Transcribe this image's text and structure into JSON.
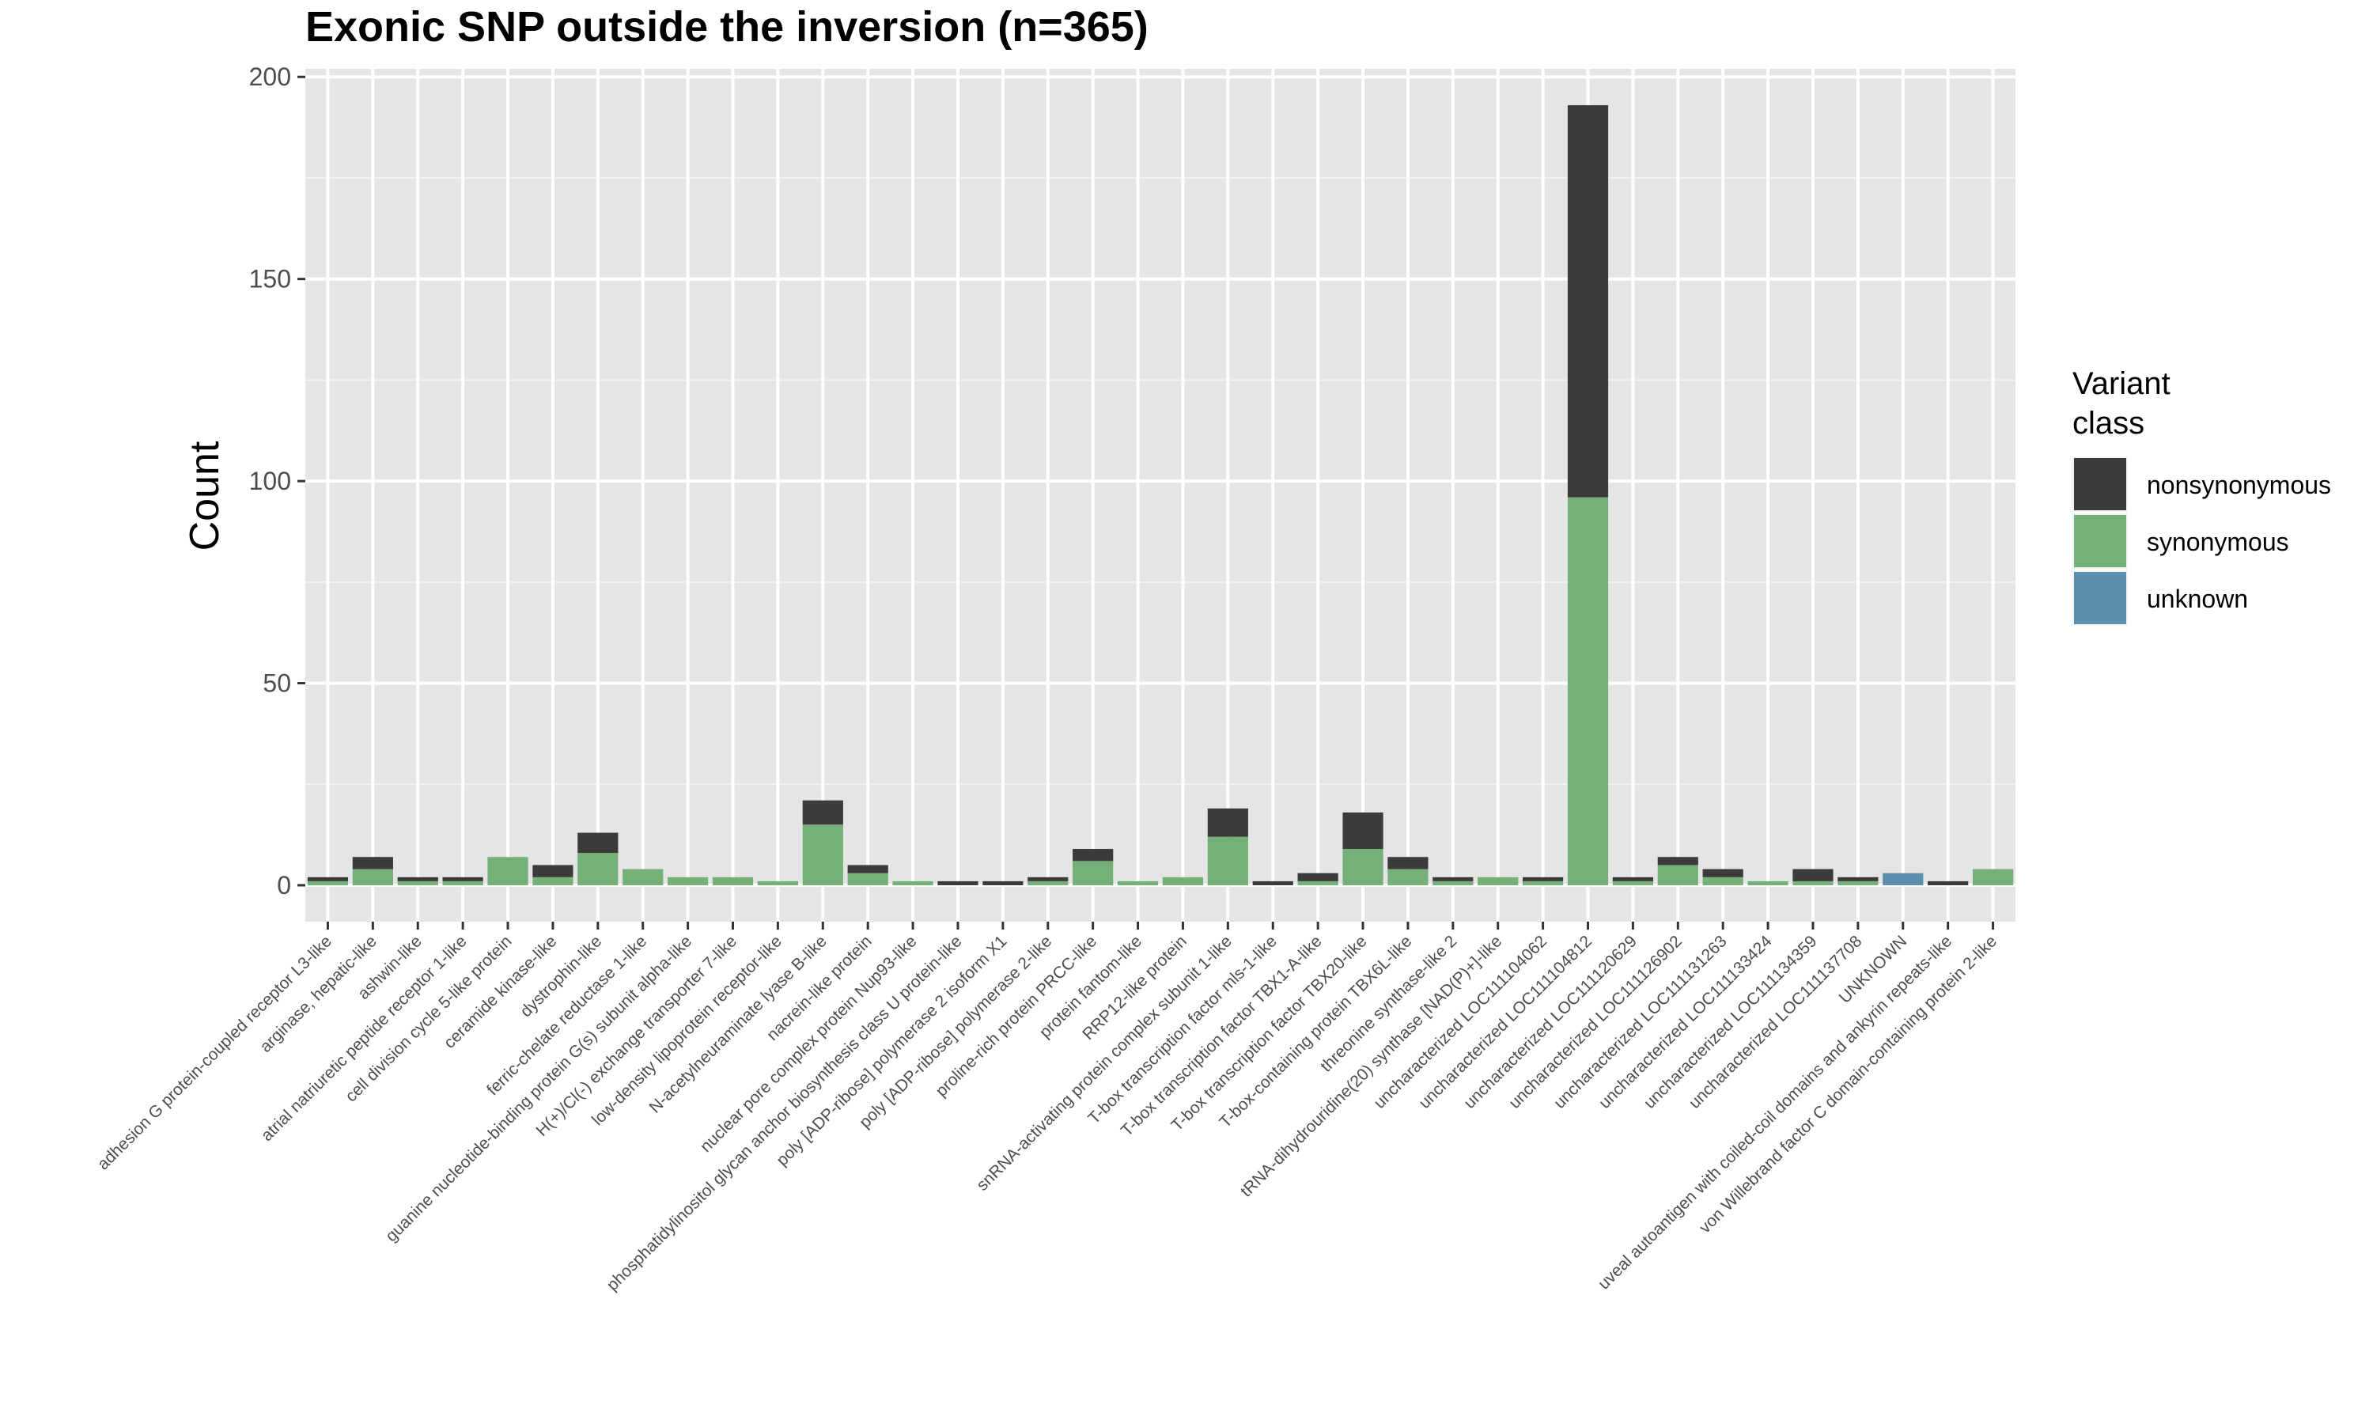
{
  "chart_data": {
    "type": "bar",
    "stacked": true,
    "title": "Exonic SNP outside the inversion (n=365)",
    "xlabel": "",
    "ylabel": "Count",
    "ylim": [
      -9,
      202
    ],
    "yticks": [
      0,
      50,
      100,
      150,
      200
    ],
    "grid": true,
    "legend_position": "right",
    "legend_title": [
      "Variant",
      "class"
    ],
    "categories": [
      "adhesion G protein-coupled receptor L3-like",
      "arginase, hepatic-like",
      "ashwin-like",
      "atrial natriuretic peptide receptor 1-like",
      "cell division cycle 5-like protein",
      "ceramide kinase-like",
      "dystrophin-like",
      "ferric-chelate reductase 1-like",
      "guanine nucleotide-binding protein G(s) subunit alpha-like",
      "H(+)/Cl(-) exchange transporter 7-like",
      "low-density lipoprotein receptor-like",
      "N-acetylneuraminate lyase B-like",
      "nacrein-like protein",
      "nuclear pore complex protein Nup93-like",
      "phosphatidylinositol glycan anchor biosynthesis class U protein-like",
      "poly [ADP-ribose] polymerase 2 isoform X1",
      "poly [ADP-ribose] polymerase 2-like",
      "proline-rich protein PRCC-like",
      "protein fantom-like",
      "RRP12-like protein",
      "snRNA-activating protein complex subunit 1-like",
      "T-box transcription factor mls-1-like",
      "T-box transcription factor TBX1-A-like",
      "T-box transcription factor TBX20-like",
      "T-box-containing protein TBX6L-like",
      "threonine synthase-like 2",
      "tRNA-dihydrouridine(20) synthase [NAD(P)+]-like",
      "uncharacterized LOC111104062",
      "uncharacterized LOC111104812",
      "uncharacterized LOC111120629",
      "uncharacterized LOC111126902",
      "uncharacterized LOC111131263",
      "uncharacterized LOC111133424",
      "uncharacterized LOC111134359",
      "uncharacterized LOC111137708",
      "UNKNOWN",
      "uveal autoantigen with coiled-coil domains and ankyrin repeats-like",
      "von Willebrand factor C domain-containing protein 2-like"
    ],
    "series": [
      {
        "name": "nonsynonymous",
        "color": "#3b3b3b",
        "values": [
          1,
          3,
          1,
          1,
          0,
          3,
          5,
          0,
          0,
          0,
          0,
          6,
          2,
          0,
          1,
          1,
          1,
          3,
          0,
          0,
          7,
          1,
          2,
          9,
          3,
          1,
          0,
          1,
          97,
          1,
          2,
          2,
          0,
          3,
          1,
          0,
          1,
          0
        ]
      },
      {
        "name": "synonymous",
        "color": "#74b077",
        "values": [
          1,
          4,
          1,
          1,
          7,
          2,
          8,
          4,
          2,
          2,
          1,
          15,
          3,
          1,
          0,
          0,
          1,
          6,
          1,
          2,
          12,
          0,
          1,
          9,
          4,
          1,
          2,
          1,
          96,
          1,
          5,
          2,
          1,
          1,
          1,
          0,
          0,
          4
        ]
      },
      {
        "name": "unknown",
        "color": "#5b8fad",
        "values": [
          0,
          0,
          0,
          0,
          0,
          0,
          0,
          0,
          0,
          0,
          0,
          0,
          0,
          0,
          0,
          0,
          0,
          0,
          0,
          0,
          0,
          0,
          0,
          0,
          0,
          0,
          0,
          0,
          0,
          0,
          0,
          0,
          0,
          0,
          0,
          3,
          0,
          0
        ]
      }
    ]
  }
}
